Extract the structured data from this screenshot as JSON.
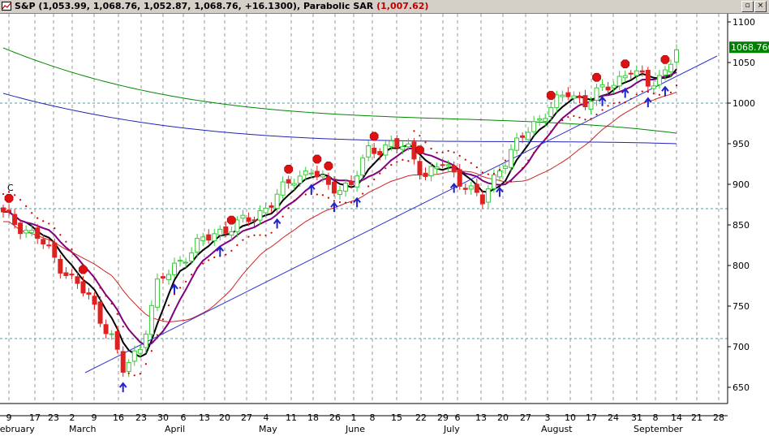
{
  "window": {
    "symbol": "S&P",
    "ohlc": "(1,053.99, 1,068.76, 1,052.87, 1,068.76, +16.1300)",
    "indicator": "Parabolic SAR",
    "indicator_value": "(1,007.62)",
    "restore_glyph": "▫",
    "close_glyph": "×"
  },
  "chart_data": {
    "type": "candlestick",
    "y_ticks": [
      1100,
      1050,
      1000,
      950,
      900,
      850,
      800,
      750,
      700,
      650
    ],
    "ylim": [
      630,
      1110
    ],
    "last_price_label": "1068.760",
    "last_price": 1068.76,
    "horizontal_levels": [
      1000,
      870,
      710
    ],
    "x_day_ticks": [
      "9",
      "17",
      "23",
      "2",
      "9",
      "16",
      "23",
      "30",
      "6",
      "13",
      "20",
      "27",
      "4",
      "11",
      "18",
      "26",
      "1",
      "8",
      "15",
      "22",
      "29",
      "6",
      "13",
      "20",
      "27",
      "3",
      "10",
      "17",
      "24",
      "31",
      "8",
      "14",
      "21",
      "28"
    ],
    "x_months": [
      "February",
      "March",
      "April",
      "May",
      "June",
      "July",
      "August",
      "September"
    ],
    "marker_letter": "C",
    "colors": {
      "up": "#33cc33",
      "down": "#dd2222",
      "sar": "#cc0000",
      "ma_fast": "#000000",
      "ma_mid": "#800080",
      "ma_slow": "#cc2222",
      "ma_long_green": "#008800",
      "ma_long_blue": "#2222bb",
      "trendline": "#3333cc",
      "grid": "#999999"
    }
  }
}
